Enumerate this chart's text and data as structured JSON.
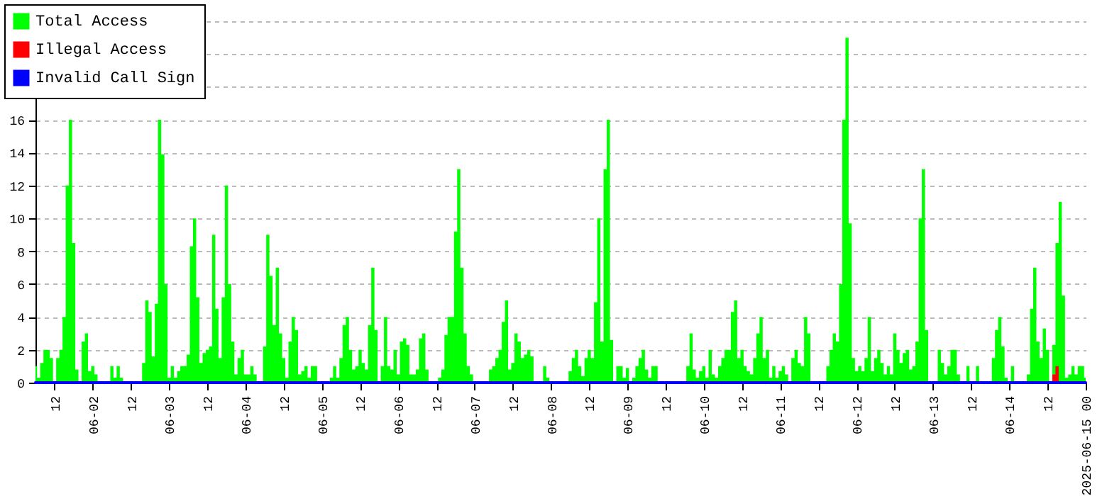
{
  "chart_data": {
    "type": "area",
    "x": [
      "2025-06-01T06:00",
      "2025-06-01T07:00",
      "2025-06-01T08:00",
      "2025-06-01T09:00",
      "2025-06-01T10:00",
      "2025-06-01T11:00",
      "2025-06-01T12:00",
      "2025-06-01T13:00",
      "2025-06-01T14:00",
      "2025-06-01T15:00",
      "2025-06-01T16:00",
      "2025-06-01T17:00",
      "2025-06-01T18:00",
      "2025-06-01T19:00",
      "2025-06-01T20:00",
      "2025-06-01T21:00",
      "2025-06-01T22:00",
      "2025-06-01T23:00",
      "2025-06-02T00:00",
      "2025-06-02T01:00",
      "2025-06-02T02:00",
      "2025-06-02T03:00",
      "2025-06-02T04:00",
      "2025-06-02T05:00",
      "2025-06-02T06:00",
      "2025-06-02T07:00",
      "2025-06-02T08:00",
      "2025-06-02T09:00",
      "2025-06-02T10:00",
      "2025-06-02T11:00",
      "2025-06-02T12:00",
      "2025-06-02T13:00",
      "2025-06-02T14:00",
      "2025-06-02T15:00",
      "2025-06-02T16:00",
      "2025-06-02T17:00",
      "2025-06-02T18:00",
      "2025-06-02T19:00",
      "2025-06-02T20:00",
      "2025-06-02T21:00",
      "2025-06-02T22:00",
      "2025-06-02T23:00",
      "2025-06-03T00:00",
      "2025-06-03T01:00",
      "2025-06-03T02:00",
      "2025-06-03T03:00",
      "2025-06-03T04:00",
      "2025-06-03T05:00",
      "2025-06-03T06:00",
      "2025-06-03T07:00",
      "2025-06-03T08:00",
      "2025-06-03T09:00",
      "2025-06-03T10:00",
      "2025-06-03T11:00",
      "2025-06-03T12:00",
      "2025-06-03T13:00",
      "2025-06-03T14:00",
      "2025-06-03T15:00",
      "2025-06-03T16:00",
      "2025-06-03T17:00",
      "2025-06-03T18:00",
      "2025-06-03T19:00",
      "2025-06-03T20:00",
      "2025-06-03T21:00",
      "2025-06-03T22:00",
      "2025-06-03T23:00",
      "2025-06-04T00:00",
      "2025-06-04T01:00",
      "2025-06-04T02:00",
      "2025-06-04T03:00",
      "2025-06-04T04:00",
      "2025-06-04T05:00",
      "2025-06-04T06:00",
      "2025-06-04T07:00",
      "2025-06-04T08:00",
      "2025-06-04T09:00",
      "2025-06-04T10:00",
      "2025-06-04T11:00",
      "2025-06-04T12:00",
      "2025-06-04T13:00",
      "2025-06-04T14:00",
      "2025-06-04T15:00",
      "2025-06-04T16:00",
      "2025-06-04T17:00",
      "2025-06-04T18:00",
      "2025-06-04T19:00",
      "2025-06-04T20:00",
      "2025-06-04T21:00",
      "2025-06-04T22:00",
      "2025-06-04T23:00",
      "2025-06-05T00:00",
      "2025-06-05T01:00",
      "2025-06-05T02:00",
      "2025-06-05T03:00",
      "2025-06-05T04:00",
      "2025-06-05T05:00",
      "2025-06-05T06:00",
      "2025-06-05T07:00",
      "2025-06-05T08:00",
      "2025-06-05T09:00",
      "2025-06-05T10:00",
      "2025-06-05T11:00",
      "2025-06-05T12:00",
      "2025-06-05T13:00",
      "2025-06-05T14:00",
      "2025-06-05T15:00",
      "2025-06-05T16:00",
      "2025-06-05T17:00",
      "2025-06-05T18:00",
      "2025-06-05T19:00",
      "2025-06-05T20:00",
      "2025-06-05T21:00",
      "2025-06-05T22:00",
      "2025-06-05T23:00",
      "2025-06-06T00:00",
      "2025-06-06T01:00",
      "2025-06-06T02:00",
      "2025-06-06T03:00",
      "2025-06-06T04:00",
      "2025-06-06T05:00",
      "2025-06-06T06:00",
      "2025-06-06T07:00",
      "2025-06-06T08:00",
      "2025-06-06T09:00",
      "2025-06-06T10:00",
      "2025-06-06T11:00",
      "2025-06-06T12:00",
      "2025-06-06T13:00",
      "2025-06-06T14:00",
      "2025-06-06T15:00",
      "2025-06-06T16:00",
      "2025-06-06T17:00",
      "2025-06-06T18:00",
      "2025-06-06T19:00",
      "2025-06-06T20:00",
      "2025-06-06T21:00",
      "2025-06-06T22:00",
      "2025-06-06T23:00",
      "2025-06-07T00:00",
      "2025-06-07T01:00",
      "2025-06-07T02:00",
      "2025-06-07T03:00",
      "2025-06-07T04:00",
      "2025-06-07T05:00",
      "2025-06-07T06:00",
      "2025-06-07T07:00",
      "2025-06-07T08:00",
      "2025-06-07T09:00",
      "2025-06-07T10:00",
      "2025-06-07T11:00",
      "2025-06-07T12:00",
      "2025-06-07T13:00",
      "2025-06-07T14:00",
      "2025-06-07T15:00",
      "2025-06-07T16:00",
      "2025-06-07T17:00",
      "2025-06-07T18:00",
      "2025-06-07T19:00",
      "2025-06-07T20:00",
      "2025-06-07T21:00",
      "2025-06-07T22:00",
      "2025-06-07T23:00",
      "2025-06-08T00:00",
      "2025-06-08T01:00",
      "2025-06-08T02:00",
      "2025-06-08T03:00",
      "2025-06-08T04:00",
      "2025-06-08T05:00",
      "2025-06-08T06:00",
      "2025-06-08T07:00",
      "2025-06-08T08:00",
      "2025-06-08T09:00",
      "2025-06-08T10:00",
      "2025-06-08T11:00",
      "2025-06-08T12:00",
      "2025-06-08T13:00",
      "2025-06-08T14:00",
      "2025-06-08T15:00",
      "2025-06-08T16:00",
      "2025-06-08T17:00",
      "2025-06-08T18:00",
      "2025-06-08T19:00",
      "2025-06-08T20:00",
      "2025-06-08T21:00",
      "2025-06-08T22:00",
      "2025-06-08T23:00",
      "2025-06-09T00:00",
      "2025-06-09T01:00",
      "2025-06-09T02:00",
      "2025-06-09T03:00",
      "2025-06-09T04:00",
      "2025-06-09T05:00",
      "2025-06-09T06:00",
      "2025-06-09T07:00",
      "2025-06-09T08:00",
      "2025-06-09T09:00",
      "2025-06-09T10:00",
      "2025-06-09T11:00",
      "2025-06-09T12:00",
      "2025-06-09T13:00",
      "2025-06-09T14:00",
      "2025-06-09T15:00",
      "2025-06-09T16:00",
      "2025-06-09T17:00",
      "2025-06-09T18:00",
      "2025-06-09T19:00",
      "2025-06-09T20:00",
      "2025-06-09T21:00",
      "2025-06-09T22:00",
      "2025-06-09T23:00",
      "2025-06-10T00:00",
      "2025-06-10T01:00",
      "2025-06-10T02:00",
      "2025-06-10T03:00",
      "2025-06-10T04:00",
      "2025-06-10T05:00",
      "2025-06-10T06:00",
      "2025-06-10T07:00",
      "2025-06-10T08:00",
      "2025-06-10T09:00",
      "2025-06-10T10:00",
      "2025-06-10T11:00",
      "2025-06-10T12:00",
      "2025-06-10T13:00",
      "2025-06-10T14:00",
      "2025-06-10T15:00",
      "2025-06-10T16:00",
      "2025-06-10T17:00",
      "2025-06-10T18:00",
      "2025-06-10T19:00",
      "2025-06-10T20:00",
      "2025-06-10T21:00",
      "2025-06-10T22:00",
      "2025-06-10T23:00",
      "2025-06-11T00:00",
      "2025-06-11T01:00",
      "2025-06-11T02:00",
      "2025-06-11T03:00",
      "2025-06-11T04:00",
      "2025-06-11T05:00",
      "2025-06-11T06:00",
      "2025-06-11T07:00",
      "2025-06-11T08:00",
      "2025-06-11T09:00",
      "2025-06-11T10:00",
      "2025-06-11T11:00",
      "2025-06-11T12:00",
      "2025-06-11T13:00",
      "2025-06-11T14:00",
      "2025-06-11T15:00",
      "2025-06-11T16:00",
      "2025-06-11T17:00",
      "2025-06-11T18:00",
      "2025-06-11T19:00",
      "2025-06-11T20:00",
      "2025-06-11T21:00",
      "2025-06-11T22:00",
      "2025-06-11T23:00",
      "2025-06-12T00:00",
      "2025-06-12T01:00",
      "2025-06-12T02:00",
      "2025-06-12T03:00",
      "2025-06-12T04:00",
      "2025-06-12T05:00",
      "2025-06-12T06:00",
      "2025-06-12T07:00",
      "2025-06-12T08:00",
      "2025-06-12T09:00",
      "2025-06-12T10:00",
      "2025-06-12T11:00",
      "2025-06-12T12:00",
      "2025-06-12T13:00",
      "2025-06-12T14:00",
      "2025-06-12T15:00",
      "2025-06-12T16:00",
      "2025-06-12T17:00",
      "2025-06-12T18:00",
      "2025-06-12T19:00",
      "2025-06-12T20:00",
      "2025-06-12T21:00",
      "2025-06-12T22:00",
      "2025-06-12T23:00",
      "2025-06-13T00:00",
      "2025-06-13T01:00",
      "2025-06-13T02:00",
      "2025-06-13T03:00",
      "2025-06-13T04:00",
      "2025-06-13T05:00",
      "2025-06-13T06:00",
      "2025-06-13T07:00",
      "2025-06-13T08:00",
      "2025-06-13T09:00",
      "2025-06-13T10:00",
      "2025-06-13T11:00",
      "2025-06-13T12:00",
      "2025-06-13T13:00",
      "2025-06-13T14:00",
      "2025-06-13T15:00",
      "2025-06-13T16:00",
      "2025-06-13T17:00",
      "2025-06-13T18:00",
      "2025-06-13T19:00",
      "2025-06-13T20:00",
      "2025-06-13T21:00",
      "2025-06-13T22:00",
      "2025-06-13T23:00",
      "2025-06-14T00:00",
      "2025-06-14T01:00",
      "2025-06-14T02:00",
      "2025-06-14T03:00",
      "2025-06-14T04:00",
      "2025-06-14T05:00",
      "2025-06-14T06:00",
      "2025-06-14T07:00",
      "2025-06-14T08:00",
      "2025-06-14T09:00",
      "2025-06-14T10:00",
      "2025-06-14T11:00",
      "2025-06-14T12:00",
      "2025-06-14T13:00",
      "2025-06-14T14:00",
      "2025-06-14T15:00",
      "2025-06-14T16:00",
      "2025-06-14T17:00",
      "2025-06-14T18:00",
      "2025-06-14T19:00",
      "2025-06-14T20:00",
      "2025-06-14T21:00",
      "2025-06-14T22:00",
      "2025-06-14T23:00",
      "2025-06-15T00:00"
    ],
    "series": [
      {
        "name": "Total Access",
        "color": "#00ff00",
        "values": [
          1,
          0.3,
          1.2,
          2,
          2,
          1.5,
          0,
          1.5,
          2,
          4,
          12,
          16,
          8.5,
          0.8,
          0,
          2.5,
          3,
          0.7,
          1,
          0.5,
          0,
          0,
          0,
          0,
          1,
          0.3,
          1,
          0.3,
          0,
          0,
          0,
          0,
          0,
          0,
          1.2,
          5,
          4.3,
          1.6,
          4.8,
          16,
          13.9,
          6,
          0.3,
          1,
          0.3,
          0.7,
          1,
          1,
          1.7,
          8.3,
          10,
          5.2,
          1.2,
          1.8,
          2,
          2.2,
          9,
          4.5,
          1.5,
          5.2,
          12,
          6,
          2.5,
          0.5,
          1.5,
          2,
          0.5,
          0.5,
          1,
          0.5,
          0,
          0,
          2.2,
          9,
          6.5,
          3.5,
          7,
          3,
          1.5,
          0.3,
          2.5,
          4,
          3.2,
          0.5,
          0.7,
          1,
          0.3,
          1,
          1,
          0,
          0,
          0,
          0,
          0.3,
          1,
          0.3,
          1.5,
          3.5,
          4,
          2,
          0.8,
          1,
          2,
          1.2,
          0.8,
          3.5,
          7,
          3.2,
          0,
          1,
          4,
          1,
          0.8,
          2,
          0.5,
          2.5,
          2.7,
          2.3,
          0.5,
          0.5,
          0.8,
          2.7,
          3,
          0.8,
          0,
          0,
          0,
          0.3,
          0.8,
          2.9,
          4,
          4,
          9.2,
          13,
          7,
          3,
          1,
          0.5,
          0,
          0,
          0,
          0,
          0,
          0.8,
          1,
          1.5,
          2,
          3.7,
          5,
          0.8,
          1.2,
          3,
          2.5,
          1.5,
          1.7,
          2,
          1.6,
          0,
          0,
          0,
          1,
          0.3,
          0,
          0,
          0,
          0,
          0,
          0,
          0.7,
          1.5,
          2,
          1,
          0.4,
          1.5,
          2,
          1.5,
          4.9,
          10,
          2.5,
          13,
          16,
          2.6,
          0,
          1,
          1,
          0.3,
          0.9,
          0,
          0.3,
          1,
          1.5,
          2,
          0.8,
          0.3,
          1,
          1,
          0,
          0,
          0,
          0,
          0,
          0,
          0,
          0,
          0,
          1,
          3,
          0.8,
          0.3,
          0.7,
          1,
          0.3,
          2,
          0.5,
          0.3,
          1,
          1.5,
          2,
          2,
          4.3,
          5,
          1.5,
          2,
          1,
          0.7,
          0.5,
          1.5,
          3,
          4,
          1.5,
          2,
          0.3,
          1,
          0.3,
          0.7,
          1,
          0.5,
          0,
          1.5,
          2,
          1.2,
          1,
          4,
          3,
          0,
          0,
          0,
          0,
          0,
          1,
          2,
          3,
          2.5,
          6,
          16,
          21,
          9.7,
          1.5,
          0.7,
          1,
          0.7,
          1.5,
          4,
          0.7,
          1.5,
          2,
          1.2,
          0.5,
          1,
          0.5,
          3,
          2,
          1.2,
          1.8,
          2,
          0.8,
          1,
          2.5,
          10,
          13,
          3.2,
          0,
          0,
          0,
          2,
          1.2,
          0.5,
          1,
          2,
          2,
          0.5,
          0,
          0,
          1,
          0,
          0,
          1,
          0,
          0,
          0,
          0,
          1.5,
          3.2,
          4,
          2.2,
          0.3,
          0,
          1,
          0,
          0,
          0,
          0,
          0.5,
          4.5,
          7,
          2.5,
          1.5,
          3.3,
          2,
          0,
          2.3,
          8.5,
          11,
          5.3,
          0.3,
          0.5,
          1,
          0.5,
          1,
          1,
          0.3
        ]
      },
      {
        "name": "Illegal Access",
        "color": "#ff0000",
        "x": [
          "2025-06-14T13:00",
          "2025-06-14T14:00",
          "2025-06-14T15:00",
          "2025-06-14T16:00"
        ],
        "values": [
          0,
          0.5,
          1,
          0
        ]
      },
      {
        "name": "Invalid Call Sign",
        "color": "#0000ff",
        "type": "line",
        "x": [
          "2025-06-01T06:00",
          "2025-06-15T00:00"
        ],
        "values": [
          0,
          0
        ]
      }
    ],
    "xlim": [
      "2025-06-01T06:00",
      "2025-06-15T00:00"
    ],
    "xticks": [
      {
        "value": "2025-06-01T12:00",
        "label": "12"
      },
      {
        "value": "2025-06-02T00:00",
        "label": "06-02"
      },
      {
        "value": "2025-06-02T12:00",
        "label": "12"
      },
      {
        "value": "2025-06-03T00:00",
        "label": "06-03"
      },
      {
        "value": "2025-06-03T12:00",
        "label": "12"
      },
      {
        "value": "2025-06-04T00:00",
        "label": "06-04"
      },
      {
        "value": "2025-06-04T12:00",
        "label": "12"
      },
      {
        "value": "2025-06-05T00:00",
        "label": "06-05"
      },
      {
        "value": "2025-06-05T12:00",
        "label": "12"
      },
      {
        "value": "2025-06-06T00:00",
        "label": "06-06"
      },
      {
        "value": "2025-06-06T12:00",
        "label": "12"
      },
      {
        "value": "2025-06-07T00:00",
        "label": "06-07"
      },
      {
        "value": "2025-06-07T12:00",
        "label": "12"
      },
      {
        "value": "2025-06-08T00:00",
        "label": "06-08"
      },
      {
        "value": "2025-06-08T12:00",
        "label": "12"
      },
      {
        "value": "2025-06-09T00:00",
        "label": "06-09"
      },
      {
        "value": "2025-06-09T12:00",
        "label": "12"
      },
      {
        "value": "2025-06-10T00:00",
        "label": "06-10"
      },
      {
        "value": "2025-06-10T12:00",
        "label": "12"
      },
      {
        "value": "2025-06-11T00:00",
        "label": "06-11"
      },
      {
        "value": "2025-06-11T12:00",
        "label": "12"
      },
      {
        "value": "2025-06-12T00:00",
        "label": "06-12"
      },
      {
        "value": "2025-06-12T12:00",
        "label": "12"
      },
      {
        "value": "2025-06-13T00:00",
        "label": "06-13"
      },
      {
        "value": "2025-06-13T12:00",
        "label": "12"
      },
      {
        "value": "2025-06-14T00:00",
        "label": "06-14"
      },
      {
        "value": "2025-06-14T12:00",
        "label": "12"
      },
      {
        "value": "2025-06-15T00:00",
        "label": "2025-06-15 00"
      }
    ],
    "ylim": [
      0,
      22
    ],
    "yticks": [
      0,
      2,
      4,
      6,
      8,
      10,
      12,
      14,
      16,
      {
        "value": 18,
        "label": null
      },
      {
        "value": 20,
        "label": null
      },
      {
        "value": 22,
        "label": null
      }
    ],
    "grid": "y",
    "legend": "top left"
  }
}
